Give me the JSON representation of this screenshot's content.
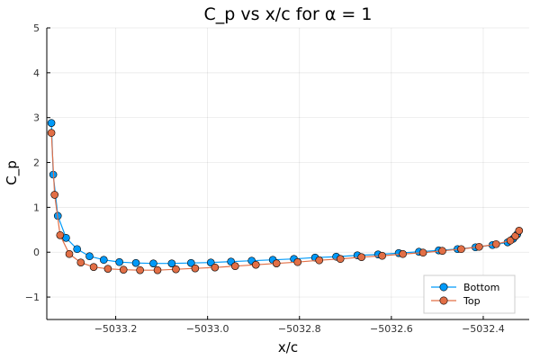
{
  "chart_data": {
    "type": "line",
    "title": "C_p vs x/c for α = 1",
    "xlabel": "x/c",
    "ylabel": "C_p",
    "xlim": [
      -5033.35,
      -5032.3
    ],
    "ylim": [
      -1.5,
      5
    ],
    "x_ticks": [
      -5033.2,
      -5033.0,
      -5032.8,
      -5032.6,
      -5032.4
    ],
    "x_tick_labels": [
      "−5033.2",
      "−5033.0",
      "−5032.8",
      "−5032.6",
      "−5032.4"
    ],
    "y_ticks": [
      -1,
      0,
      1,
      2,
      3,
      4,
      5
    ],
    "y_tick_labels": [
      "−1",
      "0",
      "1",
      "2",
      "3",
      "4",
      "5"
    ],
    "grid": true,
    "legend_position": "bottom-right",
    "colors": {
      "Bottom": "#009AF9",
      "Top": "#E26F46"
    },
    "series": [
      {
        "name": "Bottom",
        "x": [
          -5033.34,
          -5033.336,
          -5033.326,
          -5033.308,
          -5033.284,
          -5033.257,
          -5033.226,
          -5033.192,
          -5033.156,
          -5033.118,
          -5033.078,
          -5033.036,
          -5032.993,
          -5032.949,
          -5032.904,
          -5032.858,
          -5032.812,
          -5032.766,
          -5032.72,
          -5032.674,
          -5032.629,
          -5032.584,
          -5032.54,
          -5032.497,
          -5032.456,
          -5032.417,
          -5032.38,
          -5032.347,
          -5032.335,
          -5032.326
        ],
        "y": [
          2.88,
          1.73,
          0.81,
          0.32,
          0.07,
          -0.09,
          -0.17,
          -0.22,
          -0.24,
          -0.25,
          -0.25,
          -0.24,
          -0.23,
          -0.21,
          -0.19,
          -0.17,
          -0.15,
          -0.12,
          -0.1,
          -0.07,
          -0.05,
          -0.02,
          0.01,
          0.04,
          0.07,
          0.11,
          0.16,
          0.22,
          0.3,
          0.4
        ]
      },
      {
        "name": "Top",
        "x": [
          -5033.34,
          -5033.333,
          -5033.321,
          -5033.301,
          -5033.276,
          -5033.248,
          -5033.217,
          -5033.183,
          -5033.147,
          -5033.109,
          -5033.069,
          -5033.027,
          -5032.984,
          -5032.94,
          -5032.895,
          -5032.85,
          -5032.804,
          -5032.757,
          -5032.711,
          -5032.665,
          -5032.62,
          -5032.575,
          -5032.531,
          -5032.489,
          -5032.448,
          -5032.409,
          -5032.372,
          -5032.341,
          -5032.33,
          -5032.322
        ],
        "y": [
          2.66,
          1.28,
          0.38,
          -0.04,
          -0.23,
          -0.33,
          -0.37,
          -0.39,
          -0.4,
          -0.4,
          -0.38,
          -0.36,
          -0.34,
          -0.31,
          -0.28,
          -0.25,
          -0.22,
          -0.18,
          -0.15,
          -0.11,
          -0.08,
          -0.04,
          -0.01,
          0.03,
          0.07,
          0.12,
          0.18,
          0.26,
          0.36,
          0.48
        ]
      }
    ]
  }
}
